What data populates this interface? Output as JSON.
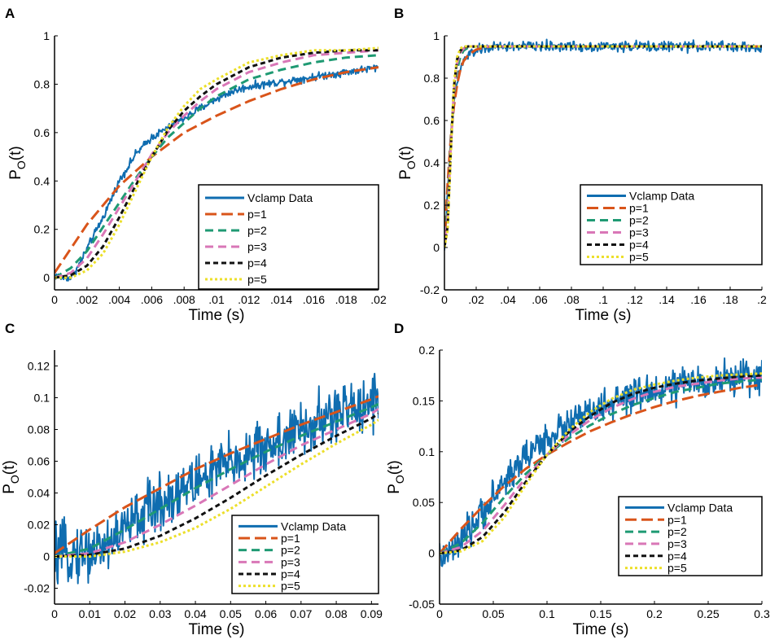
{
  "figure": {
    "legend_labels": [
      "Vclamp Data",
      "p=1",
      "p=2",
      "p=3",
      "p=4",
      "p=5"
    ]
  },
  "series_styles": {
    "Vclamp Data": {
      "color": "#0f6db0",
      "dash": "",
      "width": 3,
      "noisy": true
    },
    "p=1": {
      "color": "#d9541a",
      "dash": "14,6",
      "width": 3
    },
    "p=2": {
      "color": "#1f9a73",
      "dash": "10,6",
      "width": 3
    },
    "p=3": {
      "color": "#d977b7",
      "dash": "10,6",
      "width": 3
    },
    "p=4": {
      "color": "#111111",
      "dash": "6,4",
      "width": 3
    },
    "p=5": {
      "color": "#ecdf2a",
      "dash": "3,3",
      "width": 3
    }
  },
  "chart_data": [
    {
      "panel": "A",
      "type": "line",
      "xlabel": "Time (s)",
      "ylabel": "P",
      "ylabel_sub": "O",
      "ylabel_suffix": "(t)",
      "xlim": [
        0,
        0.02
      ],
      "ylim": [
        -0.05,
        1.0
      ],
      "xticks": [
        0,
        0.002,
        0.004,
        0.006,
        0.008,
        0.01,
        0.012,
        0.014,
        0.016,
        0.018,
        0.02
      ],
      "xticklabels": [
        "0",
        ".002",
        ".004",
        ".006",
        ".008",
        ".01",
        ".012",
        ".014",
        ".016",
        ".018",
        ".02"
      ],
      "yticks": [
        0,
        0.2,
        0.4,
        0.6,
        0.8,
        1
      ],
      "yticklabels": [
        "0",
        "0.2",
        "0.4",
        "0.6",
        "0.8",
        "1"
      ],
      "legend": "lower-right",
      "series": [
        {
          "name": "Vclamp Data",
          "x": [
            0,
            0.0005,
            0.001,
            0.0015,
            0.002,
            0.003,
            0.004,
            0.005,
            0.006,
            0.007,
            0.008,
            0.009,
            0.01,
            0.011,
            0.012,
            0.013,
            0.014,
            0.015,
            0.016,
            0.017,
            0.018,
            0.019,
            0.02
          ],
          "y": [
            0.01,
            0.0,
            0.0,
            0.05,
            0.12,
            0.25,
            0.4,
            0.51,
            0.58,
            0.62,
            0.66,
            0.7,
            0.74,
            0.77,
            0.79,
            0.8,
            0.81,
            0.82,
            0.83,
            0.84,
            0.85,
            0.86,
            0.87
          ],
          "noise": 0.008
        },
        {
          "name": "p=1",
          "x": [
            0,
            0.002,
            0.004,
            0.006,
            0.008,
            0.01,
            0.012,
            0.014,
            0.016,
            0.018,
            0.02
          ],
          "y": [
            0.02,
            0.22,
            0.38,
            0.5,
            0.6,
            0.67,
            0.73,
            0.78,
            0.82,
            0.85,
            0.87
          ]
        },
        {
          "name": "p=2",
          "x": [
            0,
            0.001,
            0.002,
            0.003,
            0.004,
            0.005,
            0.006,
            0.007,
            0.008,
            0.009,
            0.01,
            0.012,
            0.014,
            0.016,
            0.018,
            0.02
          ],
          "y": [
            0.0,
            0.04,
            0.11,
            0.21,
            0.31,
            0.41,
            0.5,
            0.58,
            0.64,
            0.7,
            0.75,
            0.82,
            0.86,
            0.89,
            0.91,
            0.92
          ]
        },
        {
          "name": "p=3",
          "x": [
            0,
            0.001,
            0.002,
            0.003,
            0.004,
            0.005,
            0.006,
            0.007,
            0.008,
            0.009,
            0.01,
            0.012,
            0.014,
            0.016,
            0.018,
            0.02
          ],
          "y": [
            0.0,
            0.02,
            0.08,
            0.18,
            0.29,
            0.4,
            0.51,
            0.6,
            0.67,
            0.73,
            0.78,
            0.85,
            0.89,
            0.92,
            0.93,
            0.94
          ]
        },
        {
          "name": "p=4",
          "x": [
            0,
            0.001,
            0.002,
            0.003,
            0.004,
            0.005,
            0.006,
            0.007,
            0.008,
            0.009,
            0.01,
            0.012,
            0.014,
            0.016,
            0.018,
            0.02
          ],
          "y": [
            0.0,
            0.01,
            0.05,
            0.13,
            0.25,
            0.38,
            0.5,
            0.61,
            0.69,
            0.75,
            0.8,
            0.87,
            0.91,
            0.93,
            0.94,
            0.94
          ]
        },
        {
          "name": "p=5",
          "x": [
            0,
            0.001,
            0.002,
            0.003,
            0.004,
            0.005,
            0.006,
            0.007,
            0.008,
            0.009,
            0.01,
            0.012,
            0.014,
            0.016,
            0.018,
            0.02
          ],
          "y": [
            0.0,
            0.0,
            0.03,
            0.1,
            0.22,
            0.36,
            0.5,
            0.62,
            0.71,
            0.78,
            0.82,
            0.89,
            0.92,
            0.94,
            0.94,
            0.95
          ]
        }
      ]
    },
    {
      "panel": "B",
      "type": "line",
      "xlabel": "Time (s)",
      "ylabel": "P",
      "ylabel_sub": "O",
      "ylabel_suffix": "(t)",
      "xlim": [
        0,
        0.2
      ],
      "ylim": [
        -0.2,
        1.0
      ],
      "xticks": [
        0,
        0.02,
        0.04,
        0.06,
        0.08,
        0.1,
        0.12,
        0.14,
        0.16,
        0.18,
        0.2
      ],
      "xticklabels": [
        "0",
        ".02",
        ".04",
        ".06",
        ".08",
        ".1",
        ".12",
        ".14",
        ".16",
        ".18",
        ".2"
      ],
      "yticks": [
        -0.2,
        0,
        0.2,
        0.4,
        0.6,
        0.8,
        1
      ],
      "yticklabels": [
        "-0.2",
        "0",
        "0.2",
        "0.4",
        "0.6",
        "0.8",
        "1"
      ],
      "legend": "lower-right",
      "series": [
        {
          "name": "Vclamp Data",
          "x": [
            0,
            0.002,
            0.004,
            0.006,
            0.008,
            0.01,
            0.012,
            0.015,
            0.02,
            0.025,
            0.03,
            0.04,
            0.06,
            0.08,
            0.1,
            0.12,
            0.14,
            0.16,
            0.18,
            0.2
          ],
          "y": [
            0.0,
            0.25,
            0.5,
            0.68,
            0.78,
            0.84,
            0.88,
            0.91,
            0.93,
            0.94,
            0.945,
            0.95,
            0.95,
            0.95,
            0.95,
            0.95,
            0.95,
            0.95,
            0.95,
            0.94
          ],
          "noise": 0.012
        },
        {
          "name": "p=1",
          "x": [
            0,
            0.002,
            0.004,
            0.006,
            0.008,
            0.01,
            0.012,
            0.015,
            0.02,
            0.025,
            0.03,
            0.04,
            0.2
          ],
          "y": [
            0.02,
            0.3,
            0.52,
            0.67,
            0.77,
            0.84,
            0.88,
            0.91,
            0.935,
            0.945,
            0.95,
            0.95,
            0.95
          ]
        },
        {
          "name": "p=2",
          "x": [
            0,
            0.002,
            0.004,
            0.006,
            0.008,
            0.01,
            0.012,
            0.015,
            0.02,
            0.025,
            0.03,
            0.2
          ],
          "y": [
            0.0,
            0.2,
            0.5,
            0.72,
            0.84,
            0.9,
            0.93,
            0.945,
            0.95,
            0.95,
            0.95,
            0.95
          ]
        },
        {
          "name": "p=3",
          "x": [
            0,
            0.002,
            0.004,
            0.006,
            0.008,
            0.01,
            0.012,
            0.015,
            0.02,
            0.2
          ],
          "y": [
            0.0,
            0.15,
            0.48,
            0.74,
            0.87,
            0.92,
            0.94,
            0.95,
            0.95,
            0.95
          ]
        },
        {
          "name": "p=4",
          "x": [
            0,
            0.002,
            0.004,
            0.006,
            0.008,
            0.01,
            0.012,
            0.015,
            0.02,
            0.2
          ],
          "y": [
            0.0,
            0.1,
            0.46,
            0.76,
            0.89,
            0.93,
            0.945,
            0.95,
            0.95,
            0.95
          ]
        },
        {
          "name": "p=5",
          "x": [
            0,
            0.002,
            0.004,
            0.006,
            0.008,
            0.01,
            0.012,
            0.015,
            0.02,
            0.2
          ],
          "y": [
            0.0,
            0.08,
            0.44,
            0.78,
            0.9,
            0.94,
            0.95,
            0.95,
            0.95,
            0.95
          ]
        }
      ]
    },
    {
      "panel": "C",
      "type": "line",
      "xlabel": "Time (s)",
      "ylabel": "P",
      "ylabel_sub": "O",
      "ylabel_suffix": "(t)",
      "xlim": [
        0,
        0.092
      ],
      "ylim": [
        -0.03,
        0.13
      ],
      "xticks": [
        0,
        0.01,
        0.02,
        0.03,
        0.04,
        0.05,
        0.06,
        0.07,
        0.08,
        0.09
      ],
      "xticklabels": [
        "0",
        "0.01",
        "0.02",
        "0.03",
        "0.04",
        "0.05",
        "0.06",
        "0.07",
        "0.08",
        "0.09"
      ],
      "yticks": [
        -0.02,
        0,
        0.02,
        0.04,
        0.06,
        0.08,
        0.1,
        0.12
      ],
      "yticklabels": [
        "-0.02",
        "0",
        "0.02",
        "0.04",
        "0.06",
        "0.08",
        "0.1",
        "0.12"
      ],
      "legend": "lower-right",
      "series": [
        {
          "name": "Vclamp Data",
          "x": [
            0,
            0.005,
            0.01,
            0.015,
            0.02,
            0.025,
            0.03,
            0.035,
            0.04,
            0.045,
            0.05,
            0.055,
            0.06,
            0.065,
            0.07,
            0.075,
            0.08,
            0.085,
            0.09,
            0.092
          ],
          "y": [
            0.0,
            0.002,
            0.003,
            0.008,
            0.018,
            0.027,
            0.034,
            0.041,
            0.047,
            0.053,
            0.059,
            0.064,
            0.069,
            0.074,
            0.079,
            0.084,
            0.089,
            0.094,
            0.099,
            0.1
          ],
          "noise": 0.009
        },
        {
          "name": "p=1",
          "x": [
            0,
            0.01,
            0.02,
            0.03,
            0.04,
            0.05,
            0.06,
            0.07,
            0.08,
            0.09,
            0.092
          ],
          "y": [
            0.002,
            0.017,
            0.031,
            0.043,
            0.055,
            0.065,
            0.074,
            0.083,
            0.091,
            0.099,
            0.101
          ]
        },
        {
          "name": "p=2",
          "x": [
            0,
            0.01,
            0.02,
            0.03,
            0.04,
            0.05,
            0.06,
            0.07,
            0.08,
            0.09,
            0.092
          ],
          "y": [
            0.0,
            0.005,
            0.017,
            0.03,
            0.043,
            0.055,
            0.066,
            0.076,
            0.085,
            0.094,
            0.096
          ]
        },
        {
          "name": "p=3",
          "x": [
            0,
            0.01,
            0.02,
            0.03,
            0.04,
            0.05,
            0.06,
            0.07,
            0.08,
            0.09,
            0.092
          ],
          "y": [
            0.0,
            0.002,
            0.009,
            0.02,
            0.032,
            0.045,
            0.058,
            0.07,
            0.08,
            0.09,
            0.093
          ]
        },
        {
          "name": "p=4",
          "x": [
            0,
            0.01,
            0.02,
            0.03,
            0.04,
            0.05,
            0.06,
            0.07,
            0.08,
            0.09,
            0.092
          ],
          "y": [
            0.0,
            0.001,
            0.005,
            0.013,
            0.024,
            0.037,
            0.051,
            0.064,
            0.076,
            0.087,
            0.09
          ]
        },
        {
          "name": "p=5",
          "x": [
            0,
            0.01,
            0.02,
            0.03,
            0.04,
            0.05,
            0.06,
            0.07,
            0.08,
            0.09,
            0.092
          ],
          "y": [
            0.0,
            0.0,
            0.003,
            0.009,
            0.018,
            0.03,
            0.044,
            0.058,
            0.071,
            0.083,
            0.086
          ]
        }
      ]
    },
    {
      "panel": "D",
      "type": "line",
      "xlabel": "Time (s)",
      "ylabel": "P",
      "ylabel_sub": "O",
      "ylabel_suffix": "(t)",
      "xlim": [
        0,
        0.3
      ],
      "ylim": [
        -0.05,
        0.2
      ],
      "xticks": [
        0,
        0.05,
        0.1,
        0.15,
        0.2,
        0.25,
        0.3
      ],
      "xticklabels": [
        "0",
        "0.05",
        "0.1",
        "0.15",
        "0.2",
        "0.25",
        "0.3"
      ],
      "yticks": [
        -0.05,
        0,
        0.05,
        0.1,
        0.15,
        0.2
      ],
      "yticklabels": [
        "-0.05",
        "0",
        "0.05",
        "0.1",
        "0.15",
        "0.2"
      ],
      "legend": "lower-right",
      "series": [
        {
          "name": "Vclamp Data",
          "x": [
            0,
            0.01,
            0.02,
            0.03,
            0.04,
            0.05,
            0.06,
            0.07,
            0.08,
            0.09,
            0.1,
            0.12,
            0.14,
            0.16,
            0.18,
            0.2,
            0.22,
            0.24,
            0.26,
            0.28,
            0.3
          ],
          "y": [
            -0.005,
            0.0,
            0.01,
            0.025,
            0.04,
            0.055,
            0.07,
            0.083,
            0.095,
            0.105,
            0.113,
            0.127,
            0.138,
            0.147,
            0.154,
            0.16,
            0.165,
            0.168,
            0.171,
            0.173,
            0.175
          ],
          "noise": 0.008
        },
        {
          "name": "p=1",
          "x": [
            0,
            0.02,
            0.04,
            0.06,
            0.08,
            0.1,
            0.12,
            0.14,
            0.16,
            0.18,
            0.2,
            0.22,
            0.24,
            0.26,
            0.28,
            0.3
          ],
          "y": [
            0.0,
            0.024,
            0.046,
            0.066,
            0.083,
            0.097,
            0.109,
            0.12,
            0.129,
            0.137,
            0.144,
            0.15,
            0.155,
            0.159,
            0.163,
            0.166
          ]
        },
        {
          "name": "p=2",
          "x": [
            0,
            0.02,
            0.04,
            0.06,
            0.08,
            0.1,
            0.12,
            0.14,
            0.16,
            0.18,
            0.2,
            0.22,
            0.24,
            0.26,
            0.28,
            0.3
          ],
          "y": [
            0.0,
            0.01,
            0.03,
            0.055,
            0.078,
            0.097,
            0.113,
            0.126,
            0.137,
            0.146,
            0.153,
            0.159,
            0.163,
            0.167,
            0.169,
            0.171
          ]
        },
        {
          "name": "p=3",
          "x": [
            0,
            0.02,
            0.04,
            0.06,
            0.08,
            0.1,
            0.12,
            0.14,
            0.16,
            0.18,
            0.2,
            0.22,
            0.24,
            0.26,
            0.28,
            0.3
          ],
          "y": [
            0.0,
            0.006,
            0.022,
            0.047,
            0.074,
            0.097,
            0.116,
            0.131,
            0.143,
            0.152,
            0.159,
            0.164,
            0.167,
            0.17,
            0.172,
            0.173
          ]
        },
        {
          "name": "p=4",
          "x": [
            0,
            0.02,
            0.04,
            0.06,
            0.08,
            0.1,
            0.12,
            0.14,
            0.16,
            0.18,
            0.2,
            0.22,
            0.24,
            0.26,
            0.28,
            0.3
          ],
          "y": [
            0.0,
            0.003,
            0.016,
            0.04,
            0.07,
            0.097,
            0.119,
            0.135,
            0.148,
            0.157,
            0.163,
            0.167,
            0.17,
            0.172,
            0.174,
            0.175
          ]
        },
        {
          "name": "p=5",
          "x": [
            0,
            0.02,
            0.04,
            0.06,
            0.08,
            0.1,
            0.12,
            0.14,
            0.16,
            0.18,
            0.2,
            0.22,
            0.24,
            0.26,
            0.28,
            0.3
          ],
          "y": [
            0.0,
            0.002,
            0.012,
            0.035,
            0.067,
            0.097,
            0.121,
            0.139,
            0.152,
            0.161,
            0.166,
            0.17,
            0.173,
            0.175,
            0.176,
            0.177
          ]
        }
      ]
    }
  ]
}
